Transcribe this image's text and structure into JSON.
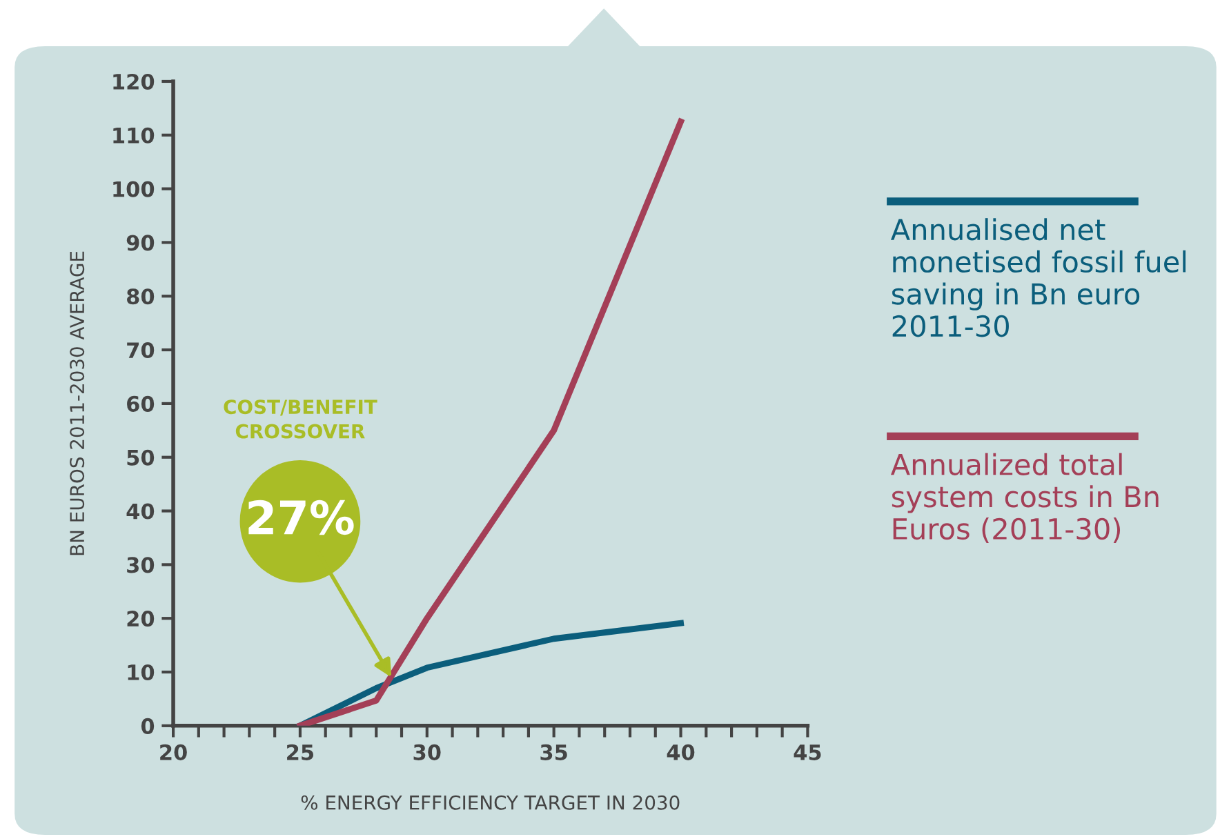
{
  "chart_data": {
    "type": "line",
    "xlabel": "% ENERGY EFFICIENCY TARGET IN 2030",
    "ylabel": "BN EUROS 2011-2030 AVERAGE",
    "series": [
      {
        "name": "Annualised net monetised fossil fuel saving in Bn euro 2011-30",
        "color": "#0b5e7c",
        "x": [
          25,
          28,
          30,
          35,
          40
        ],
        "values": [
          0,
          7,
          10.8,
          16.2,
          19.1
        ]
      },
      {
        "name": "Annualized total system costs in Bn Euros (2011-30)",
        "color": "#a43f57",
        "x": [
          25,
          28,
          30,
          35,
          40
        ],
        "values": [
          0,
          4.7,
          20,
          55,
          112.5
        ]
      }
    ],
    "annotations": [
      "COST/BENEFIT CROSSOVER",
      {
        "text": "27%",
        "x": 28.6,
        "y": 9
      }
    ],
    "xlim": [
      20,
      45
    ],
    "xticks": [
      20,
      25,
      30,
      35,
      40,
      45
    ],
    "ylim": [
      0,
      120
    ],
    "yticks": [
      0,
      10,
      20,
      30,
      40,
      50,
      60,
      70,
      80,
      90,
      100,
      110,
      120
    ],
    "grid": false,
    "legend": "right",
    "marker": "none",
    "line_style": "solid"
  }
}
